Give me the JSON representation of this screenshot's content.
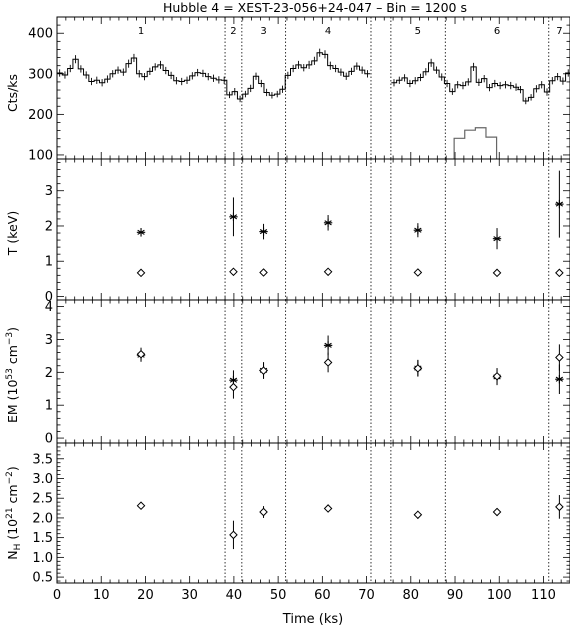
{
  "chart_data": {
    "type": "multi-panel",
    "title": "Hubble 4 = XEST-23-056+24-047   –   Bin = 1200 s",
    "xlabel": "Time (ks)",
    "xlim": [
      0,
      116
    ],
    "x_ticks": [
      0,
      10,
      20,
      30,
      40,
      50,
      60,
      70,
      80,
      90,
      100,
      110
    ],
    "x_tick_labels": [
      "0",
      "10",
      "20",
      "30",
      "40",
      "50",
      "60",
      "70",
      "80",
      "90",
      "100",
      "110"
    ],
    "segment_boundaries": [
      {
        "x": 38.0,
        "style": "dotted"
      },
      {
        "x": 41.8,
        "style": "dotted"
      },
      {
        "x": 51.7,
        "style": "dotted"
      },
      {
        "x": 71.0,
        "style": "dotted"
      },
      {
        "x": 75.5,
        "style": "dotted"
      },
      {
        "x": 87.8,
        "style": "dotted"
      },
      {
        "x": 111.2,
        "style": "dotted"
      }
    ],
    "segment_labels": [
      {
        "text": "1",
        "x": 19.0
      },
      {
        "text": "2",
        "x": 39.9
      },
      {
        "text": "3",
        "x": 46.7
      },
      {
        "text": "4",
        "x": 61.3
      },
      {
        "text": "5",
        "x": 81.6
      },
      {
        "text": "6",
        "x": 99.5
      },
      {
        "text": "7",
        "x": 113.6
      }
    ],
    "panels": [
      {
        "type": "line",
        "ylabel": "Cts/ks",
        "ylim": [
          90,
          440
        ],
        "y_ticks": [
          100,
          200,
          300,
          400
        ],
        "y_tick_labels": [
          "100",
          "200",
          "300",
          "400"
        ],
        "series": [
          {
            "style": "histogram",
            "bin_width": 1.2,
            "segments": [
              {
                "x": [
                  0.0,
                  1.2,
                  2.4,
                  3.6,
                  4.8,
                  6.0,
                  7.2,
                  8.4,
                  9.6,
                  10.8,
                  12.0,
                  13.2,
                  14.4,
                  15.6,
                  16.8,
                  18.0,
                  19.2,
                  20.4,
                  21.6,
                  22.8,
                  24.0,
                  25.2,
                  26.4,
                  27.6,
                  28.8,
                  30.0,
                  31.2,
                  32.4,
                  33.6,
                  34.8,
                  36.0,
                  37.2,
                  38.4,
                  39.6,
                  40.8,
                  42.0,
                  43.2,
                  44.4,
                  45.6,
                  46.8,
                  48.0,
                  49.2,
                  50.4,
                  51.6,
                  52.8,
                  54.0,
                  55.2,
                  56.4,
                  57.6,
                  58.8,
                  60.0,
                  61.2,
                  62.4,
                  63.6,
                  64.8,
                  66.0,
                  67.2,
                  68.4,
                  69.6
                ],
                "y": [
                  302,
                  297,
                  313,
                  336,
                  312,
                  297,
                  281,
                  284,
                  278,
                  287,
                  300,
                  309,
                  304,
                  325,
                  339,
                  300,
                  293,
                  306,
                  317,
                  322,
                  308,
                  296,
                  283,
                  281,
                  284,
                  295,
                  303,
                  301,
                  293,
                  289,
                  285,
                  284,
                  248,
                  256,
                  238,
                  250,
                  264,
                  294,
                  276,
                  254,
                  247,
                  250,
                  262,
                  296,
                  313,
                  322,
                  315,
                  322,
                  332,
                  352,
                  348,
                  320,
                  313,
                  304,
                  294,
                  306,
                  319,
                  309,
                  300
                ],
                "err": [
                  9,
                  9,
                  9,
                  10,
                  9,
                  9,
                  9,
                  9,
                  9,
                  9,
                  9,
                  9,
                  9,
                  10,
                  10,
                  9,
                  9,
                  9,
                  9,
                  10,
                  9,
                  9,
                  9,
                  9,
                  9,
                  9,
                  9,
                  9,
                  9,
                  9,
                  9,
                  9,
                  8,
                  9,
                  8,
                  8,
                  9,
                  9,
                  9,
                  9,
                  8,
                  8,
                  9,
                  9,
                  9,
                  10,
                  9,
                  10,
                  10,
                  10,
                  10,
                  10,
                  9,
                  9,
                  9,
                  9,
                  9,
                  9,
                  9
                ]
              },
              {
                "x": [
                  75.6,
                  76.8,
                  78.0,
                  79.2,
                  80.4,
                  81.6,
                  82.8,
                  84.0,
                  85.2,
                  86.4,
                  87.6,
                  88.8,
                  90.0,
                  91.2,
                  92.4,
                  93.6,
                  94.8,
                  96.0,
                  97.2,
                  98.4,
                  99.6,
                  100.8,
                  102.0,
                  103.2,
                  104.2,
                  105.4,
                  106.6,
                  107.8,
                  109.0,
                  110.2,
                  111.4,
                  112.6,
                  113.8,
                  115.0
                ],
                "y": [
                  278,
                  284,
                  290,
                  276,
                  283,
                  291,
                  305,
                  327,
                  309,
                  292,
                  276,
                  256,
                  273,
                  271,
                  280,
                  317,
                  279,
                  288,
                  266,
                  276,
                  271,
                  273,
                  271,
                  267,
                  261,
                  233,
                  242,
                  263,
                  273,
                  255,
                  283,
                  293,
                  282,
                  302
                ],
                "err": [
                  9,
                  9,
                  9,
                  9,
                  9,
                  9,
                  9,
                  10,
                  9,
                  9,
                  9,
                  8,
                  9,
                  9,
                  9,
                  10,
                  9,
                  9,
                  9,
                  9,
                  9,
                  9,
                  9,
                  9,
                  9,
                  8,
                  8,
                  9,
                  9,
                  9,
                  9,
                  9,
                  9,
                  9
                ]
              }
            ]
          },
          {
            "style": "histogram-gray",
            "bin_width": 2.4,
            "x": [
              89.8,
              92.2,
              94.6,
              97.0
            ],
            "y": [
              141,
              161,
              167,
              144
            ],
            "baseline": 90
          }
        ]
      },
      {
        "type": "scatter",
        "ylabel": "T (keV)",
        "ylim": [
          -0.1,
          3.9
        ],
        "y_ticks": [
          0,
          1,
          2,
          3
        ],
        "y_tick_labels": [
          "0",
          "1",
          "2",
          "3"
        ],
        "series": [
          {
            "marker": "asterisk",
            "x": [
              19.0,
              39.9,
              46.7,
              61.3,
              81.6,
              99.5,
              113.6
            ],
            "y": [
              1.82,
              2.26,
              1.84,
              2.09,
              1.88,
              1.64,
              2.62
            ],
            "err": [
              0.12,
              0.55,
              0.22,
              0.22,
              0.2,
              0.3,
              0.95
            ]
          },
          {
            "marker": "diamond",
            "x": [
              19.0,
              39.9,
              46.7,
              61.3,
              81.6,
              99.5,
              113.6
            ],
            "y": [
              0.67,
              0.7,
              0.68,
              0.7,
              0.68,
              0.67,
              0.67
            ],
            "err": [
              0.05,
              0.06,
              0.06,
              0.05,
              0.05,
              0.05,
              0.06
            ]
          }
        ]
      },
      {
        "type": "scatter",
        "ylabel": "EM (10⁵³ cm⁻³)",
        "ylim": [
          -0.15,
          4.2
        ],
        "y_ticks": [
          0,
          1,
          2,
          3,
          4
        ],
        "y_tick_labels": [
          "0",
          "1",
          "2",
          "3",
          "4"
        ],
        "series": [
          {
            "marker": "asterisk",
            "x": [
              19.0,
              39.9,
              46.7,
              61.3,
              81.6,
              99.5,
              113.6
            ],
            "y": [
              2.52,
              1.76,
              2.06,
              2.82,
              2.13,
              1.86,
              1.79
            ],
            "err": [
              0.2,
              0.3,
              0.25,
              0.3,
              0.25,
              0.25,
              0.45
            ]
          },
          {
            "marker": "diamond",
            "x": [
              19.0,
              39.9,
              46.7,
              61.3,
              81.6,
              99.5,
              113.6
            ],
            "y": [
              2.55,
              1.55,
              2.05,
              2.3,
              2.12,
              1.88,
              2.45
            ],
            "err": [
              0.2,
              0.35,
              0.25,
              0.3,
              0.25,
              0.25,
              0.4
            ]
          }
        ]
      },
      {
        "type": "scatter",
        "ylabel": "N_H (10²¹ cm⁻²)",
        "ylabel_parts": {
          "n": "N",
          "sub": "H",
          "pre": " (10",
          "exp1": "21",
          "mid": " cm",
          "exp2": "−2",
          "post": ")"
        },
        "ylim": [
          0.35,
          3.9
        ],
        "y_ticks": [
          0.5,
          1.0,
          1.5,
          2.0,
          2.5,
          3.0,
          3.5
        ],
        "y_tick_labels": [
          "0.5",
          "1.0",
          "1.5",
          "2.0",
          "2.5",
          "3.0",
          "3.5"
        ],
        "series": [
          {
            "marker": "diamond",
            "x": [
              19.0,
              39.9,
              46.7,
              61.3,
              81.6,
              99.5,
              113.6
            ],
            "y": [
              2.31,
              1.57,
              2.15,
              2.24,
              2.08,
              2.15,
              2.28
            ],
            "err": [
              0.05,
              0.36,
              0.15,
              0.1,
              0.1,
              0.1,
              0.3
            ]
          }
        ]
      }
    ]
  }
}
